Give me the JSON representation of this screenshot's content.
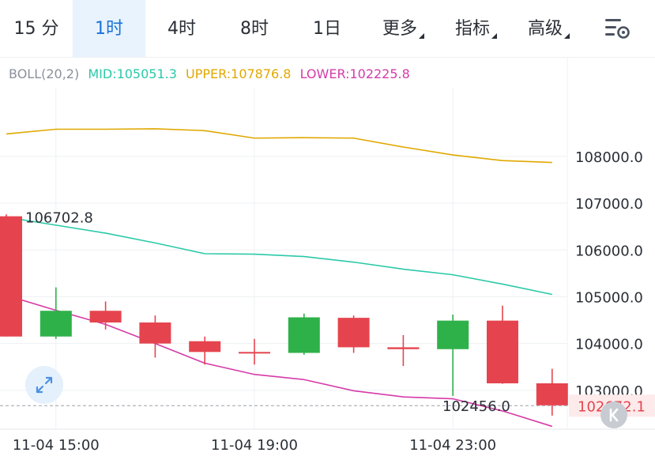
{
  "tabs": [
    {
      "label": "15 分",
      "active": false
    },
    {
      "label": "1时",
      "active": true
    },
    {
      "label": "4时",
      "active": false
    },
    {
      "label": "8时",
      "active": false
    },
    {
      "label": "1日",
      "active": false
    },
    {
      "label": "更多",
      "active": false,
      "dropdown": true
    },
    {
      "label": "指标",
      "active": false,
      "dropdown": true
    },
    {
      "label": "高级",
      "active": false,
      "dropdown": true
    }
  ],
  "icons": {
    "settings": "chart-settings-icon",
    "expand": "expand-arrows-icon",
    "collapse": "k-chevron-left-icon"
  },
  "indicator": {
    "name": "BOLL(20,2)",
    "mid_label": "MID:105051.3",
    "upper_label": "UPPER:107876.8",
    "lower_label": "LOWER:102225.8"
  },
  "colors": {
    "accent": "#1a73d6",
    "up": "#2fb14a",
    "down": "#e5444e",
    "mid": "#2bc9a8",
    "upper": "#e0a800",
    "lower": "#d63aa8",
    "grid": "#eef0f3",
    "text": "#2a2f36",
    "legend_name": "#8a919b"
  },
  "chart_data": {
    "type": "candlestick",
    "interval": "1时",
    "y_ticks": [
      "108000.0",
      "107000.0",
      "106000.0",
      "105000.0",
      "104000.0",
      "103000.0"
    ],
    "y_tick_values": [
      108000,
      107000,
      106000,
      105000,
      104000,
      103000
    ],
    "ylim": [
      102170,
      109450
    ],
    "x_ticks": [
      {
        "label": "11-04 15:00",
        "index": 1
      },
      {
        "label": "11-04 19:00",
        "index": 5
      },
      {
        "label": "11-04 23:00",
        "index": 9
      }
    ],
    "candles": [
      {
        "open": 106720,
        "high": 106760,
        "low": 104150,
        "close": 104150
      },
      {
        "open": 104150,
        "high": 105200,
        "low": 104100,
        "close": 104700
      },
      {
        "open": 104700,
        "high": 104900,
        "low": 104300,
        "close": 104450
      },
      {
        "open": 104450,
        "high": 104600,
        "low": 103700,
        "close": 104000
      },
      {
        "open": 104050,
        "high": 104150,
        "low": 103550,
        "close": 103820
      },
      {
        "open": 103820,
        "high": 104100,
        "low": 103550,
        "close": 103800
      },
      {
        "open": 103800,
        "high": 104640,
        "low": 103760,
        "close": 104560
      },
      {
        "open": 104550,
        "high": 104600,
        "low": 103800,
        "close": 103920
      },
      {
        "open": 103920,
        "high": 104180,
        "low": 103520,
        "close": 103880
      },
      {
        "open": 103880,
        "high": 104620,
        "low": 102880,
        "close": 104490
      },
      {
        "open": 104490,
        "high": 104810,
        "low": 103140,
        "close": 103150
      },
      {
        "open": 103150,
        "high": 103460,
        "low": 102460,
        "close": 102680
      }
    ],
    "boll": {
      "upper": [
        108480,
        108580,
        108580,
        108590,
        108550,
        108390,
        108400,
        108390,
        108200,
        108030,
        107910,
        107870
      ],
      "mid": [
        106700,
        106530,
        106360,
        106150,
        105920,
        105910,
        105860,
        105740,
        105590,
        105470,
        105270,
        105050
      ],
      "lower": [
        105030,
        104710,
        104410,
        104000,
        103580,
        103340,
        103230,
        102990,
        102860,
        102820,
        102560,
        102230
      ]
    },
    "annotations": {
      "high_label": "106702.8",
      "low_label": "102456.0",
      "current_price_label": "102672.1",
      "current_price": 102672.1
    }
  }
}
